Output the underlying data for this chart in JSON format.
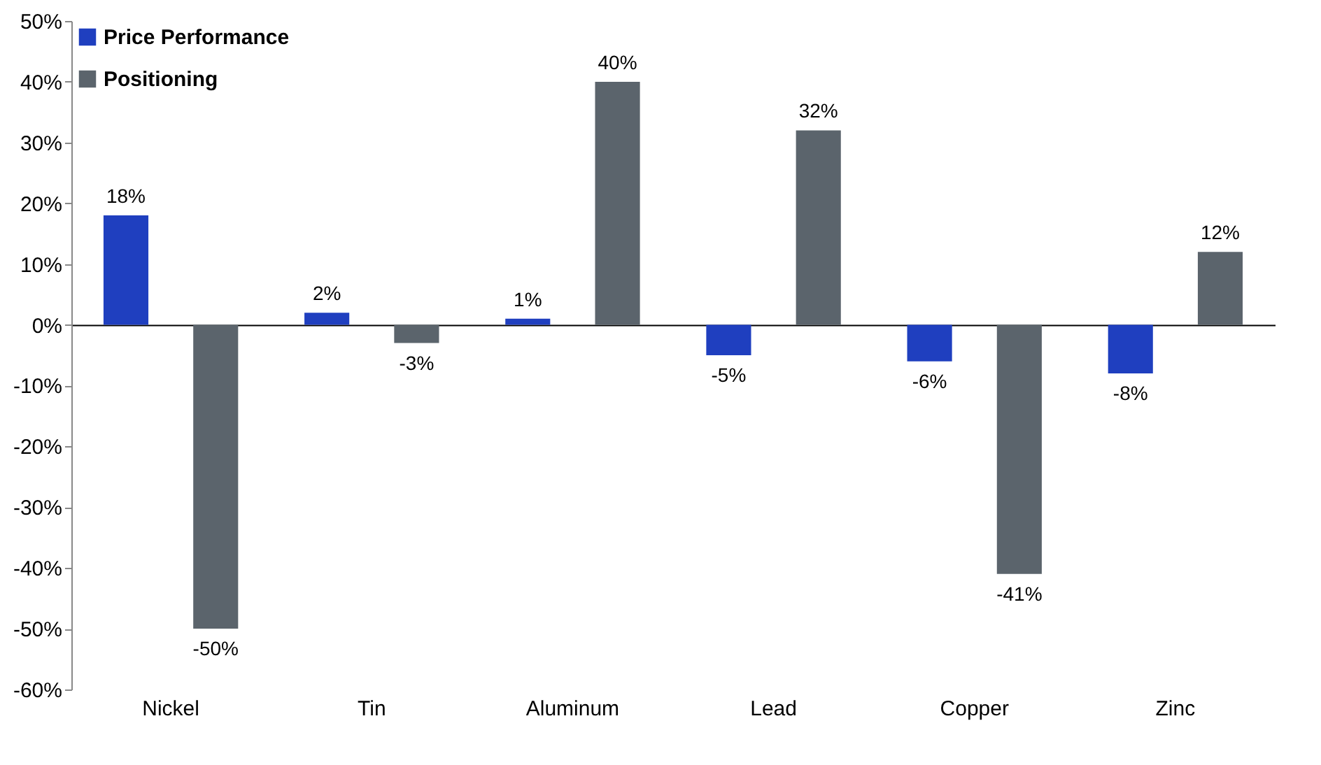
{
  "chart_data": {
    "type": "bar",
    "categories": [
      "Nickel",
      "Tin",
      "Aluminum",
      "Lead",
      "Copper",
      "Zinc"
    ],
    "series": [
      {
        "name": "Price Performance",
        "color": "#1f3fbf",
        "values": [
          18,
          2,
          1,
          -5,
          -6,
          -8
        ],
        "value_labels": [
          "18%",
          "2%",
          "1%",
          "-5%",
          "-6%",
          "-8%"
        ]
      },
      {
        "name": "Positioning",
        "color": "#5b646c",
        "values": [
          -50,
          -3,
          40,
          32,
          -41,
          12
        ],
        "value_labels": [
          "-50%",
          "-3%",
          "40%",
          "32%",
          "-41%",
          "12%"
        ]
      }
    ],
    "ylim": [
      -60,
      50
    ],
    "yticks": [
      {
        "value": -60,
        "label": "-60%"
      },
      {
        "value": -50,
        "label": "-50%"
      },
      {
        "value": -40,
        "label": "-40%"
      },
      {
        "value": -30,
        "label": "-30%"
      },
      {
        "value": -20,
        "label": "-20%"
      },
      {
        "value": -10,
        "label": "-10%"
      },
      {
        "value": 0,
        "label": "0%"
      },
      {
        "value": 10,
        "label": "10%"
      },
      {
        "value": 20,
        "label": "20%"
      },
      {
        "value": 30,
        "label": "30%"
      },
      {
        "value": 40,
        "label": "40%"
      },
      {
        "value": 50,
        "label": "50%"
      }
    ],
    "legend": "top left"
  }
}
